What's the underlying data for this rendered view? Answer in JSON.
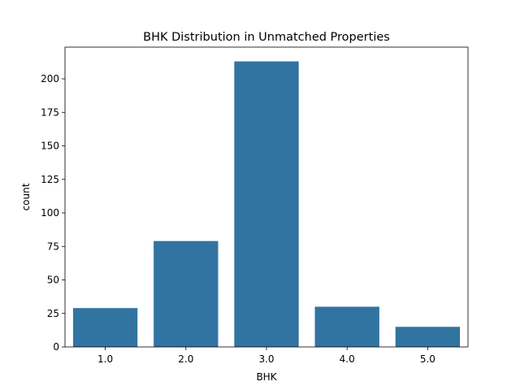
{
  "chart_data": {
    "type": "bar",
    "title": "BHK Distribution in Unmatched Properties",
    "xlabel": "BHK",
    "ylabel": "count",
    "categories": [
      "1.0",
      "2.0",
      "3.0",
      "4.0",
      "5.0"
    ],
    "values": [
      29,
      79,
      213,
      30,
      15
    ],
    "ylim": [
      0,
      223.65
    ],
    "yticks": [
      0,
      25,
      50,
      75,
      100,
      125,
      150,
      175,
      200
    ],
    "grid": false,
    "bar_color": "#3274a1"
  }
}
